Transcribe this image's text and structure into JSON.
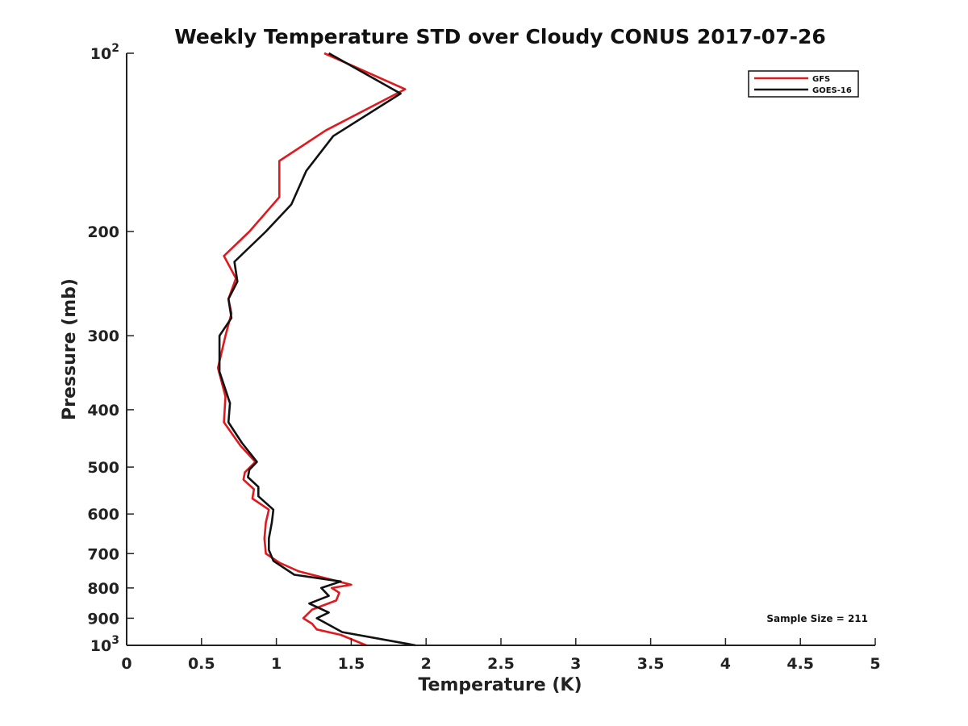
{
  "chart_data": {
    "type": "line",
    "title": "Weekly Temperature STD over Cloudy CONUS 2017-07-26",
    "xlabel": "Temperature (K)",
    "ylabel": "Pressure (mb)",
    "xlim": [
      0,
      5
    ],
    "ylim": [
      100,
      1000
    ],
    "y_scale": "log",
    "y_reversed": true,
    "grid": false,
    "legend_position": "top-right",
    "x_ticks": [
      0,
      0.5,
      1,
      1.5,
      2,
      2.5,
      3,
      3.5,
      4,
      4.5,
      5
    ],
    "x_tick_labels": [
      "0",
      "0.5",
      "1",
      "1.5",
      "2",
      "2.5",
      "3",
      "3.5",
      "4",
      "4.5",
      "5"
    ],
    "y_ticks": [
      100,
      200,
      300,
      400,
      500,
      600,
      700,
      800,
      900,
      1000
    ],
    "y_tick_labels": [
      {
        "base": "10",
        "exp": "2"
      },
      {
        "text": "200"
      },
      {
        "text": "300"
      },
      {
        "text": "400"
      },
      {
        "text": "500"
      },
      {
        "text": "600"
      },
      {
        "text": "700"
      },
      {
        "text": "800"
      },
      {
        "text": "900"
      },
      {
        "base": "10",
        "exp": "3"
      }
    ],
    "annotation": "Sample Size = 211",
    "series": [
      {
        "name": "GFS",
        "color": "#e0191e",
        "points": [
          [
            1.32,
            100
          ],
          [
            1.86,
            115
          ],
          [
            1.33,
            135
          ],
          [
            1.02,
            152
          ],
          [
            1.02,
            175
          ],
          [
            0.82,
            200
          ],
          [
            0.65,
            220
          ],
          [
            0.73,
            240
          ],
          [
            0.68,
            260
          ],
          [
            0.7,
            275
          ],
          [
            0.66,
            300
          ],
          [
            0.61,
            340
          ],
          [
            0.66,
            380
          ],
          [
            0.65,
            420
          ],
          [
            0.76,
            460
          ],
          [
            0.86,
            490
          ],
          [
            0.79,
            510
          ],
          [
            0.78,
            525
          ],
          [
            0.85,
            545
          ],
          [
            0.84,
            565
          ],
          [
            0.95,
            590
          ],
          [
            0.93,
            620
          ],
          [
            0.92,
            660
          ],
          [
            0.93,
            700
          ],
          [
            1.02,
            725
          ],
          [
            1.15,
            750
          ],
          [
            1.5,
            790
          ],
          [
            1.37,
            800
          ],
          [
            1.42,
            815
          ],
          [
            1.4,
            840
          ],
          [
            1.24,
            870
          ],
          [
            1.18,
            900
          ],
          [
            1.24,
            920
          ],
          [
            1.27,
            940
          ],
          [
            1.43,
            960
          ],
          [
            1.6,
            1000
          ]
        ]
      },
      {
        "name": "GOES-16",
        "color": "#111111",
        "points": [
          [
            1.35,
            100
          ],
          [
            1.83,
            117
          ],
          [
            1.38,
            138
          ],
          [
            1.2,
            158
          ],
          [
            1.1,
            180
          ],
          [
            0.93,
            200
          ],
          [
            0.72,
            225
          ],
          [
            0.74,
            243
          ],
          [
            0.68,
            260
          ],
          [
            0.7,
            280
          ],
          [
            0.62,
            300
          ],
          [
            0.62,
            345
          ],
          [
            0.69,
            390
          ],
          [
            0.68,
            420
          ],
          [
            0.77,
            455
          ],
          [
            0.87,
            490
          ],
          [
            0.82,
            505
          ],
          [
            0.81,
            520
          ],
          [
            0.88,
            540
          ],
          [
            0.88,
            560
          ],
          [
            0.98,
            590
          ],
          [
            0.97,
            620
          ],
          [
            0.95,
            660
          ],
          [
            0.95,
            690
          ],
          [
            0.98,
            720
          ],
          [
            1.12,
            760
          ],
          [
            1.43,
            780
          ],
          [
            1.3,
            800
          ],
          [
            1.35,
            825
          ],
          [
            1.22,
            850
          ],
          [
            1.35,
            880
          ],
          [
            1.27,
            900
          ],
          [
            1.44,
            950
          ],
          [
            1.93,
            1000
          ]
        ]
      }
    ]
  }
}
